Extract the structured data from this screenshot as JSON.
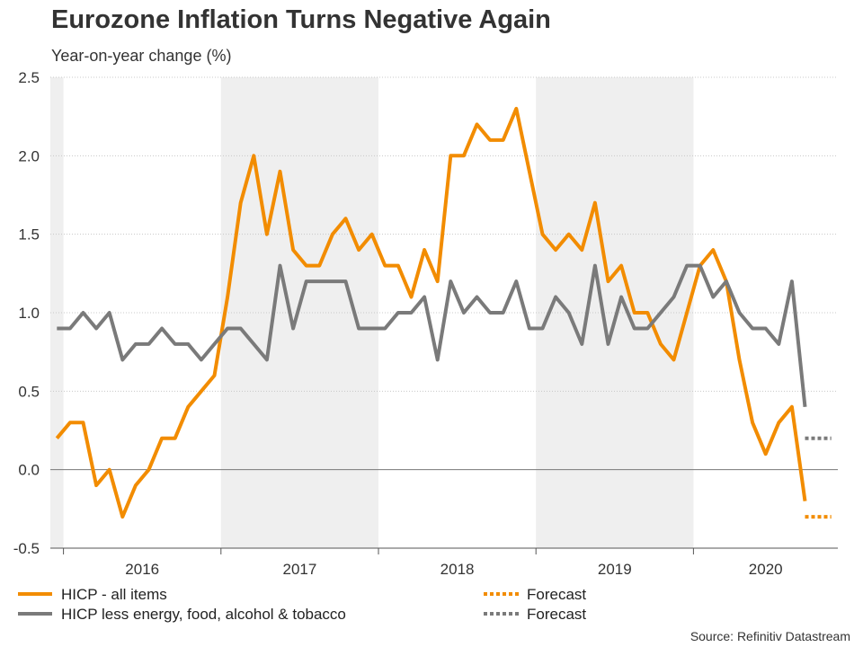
{
  "title": "Eurozone Inflation Turns Negative Again",
  "subtitle": "Year-on-year change (%)",
  "source": "Source: Refinitiv Datastream",
  "legend": [
    {
      "label": "HICP - all items",
      "color": "#f28c00",
      "style": "solid"
    },
    {
      "label": "Forecast",
      "color": "#f28c00",
      "style": "dotted"
    },
    {
      "label": "HICP less energy, food, alcohol & tobacco",
      "color": "#7a7a7a",
      "style": "solid"
    },
    {
      "label": "Forecast",
      "color": "#7a7a7a",
      "style": "dotted"
    }
  ],
  "chart_data": {
    "type": "line",
    "title": "Eurozone Inflation Turns Negative Again",
    "ylabel": "Year-on-year change (%)",
    "ylim": [
      -0.5,
      2.5
    ],
    "yticks": [
      "-0.5",
      "0.0",
      "0.5",
      "1.0",
      "1.5",
      "2.0",
      "2.5"
    ],
    "x_start": "2015-12",
    "x_end": "2020-11",
    "year_labels": [
      "2016",
      "2017",
      "2018",
      "2019",
      "2020"
    ],
    "shaded_years": [
      "2015",
      "2017",
      "2019"
    ],
    "grid": "horizontal dotted",
    "series": [
      {
        "name": "HICP - all items",
        "color": "#f28c00",
        "x": [
          "2015-12",
          "2016-01",
          "2016-02",
          "2016-03",
          "2016-04",
          "2016-05",
          "2016-06",
          "2016-07",
          "2016-08",
          "2016-09",
          "2016-10",
          "2016-11",
          "2016-12",
          "2017-01",
          "2017-02",
          "2017-03",
          "2017-04",
          "2017-05",
          "2017-06",
          "2017-07",
          "2017-08",
          "2017-09",
          "2017-10",
          "2017-11",
          "2017-12",
          "2018-01",
          "2018-02",
          "2018-03",
          "2018-04",
          "2018-05",
          "2018-06",
          "2018-07",
          "2018-08",
          "2018-09",
          "2018-10",
          "2018-11",
          "2018-12",
          "2019-01",
          "2019-02",
          "2019-03",
          "2019-04",
          "2019-05",
          "2019-06",
          "2019-07",
          "2019-08",
          "2019-09",
          "2019-10",
          "2019-11",
          "2019-12",
          "2020-01",
          "2020-02",
          "2020-03",
          "2020-04",
          "2020-05",
          "2020-06",
          "2020-07",
          "2020-08",
          "2020-09"
        ],
        "values": [
          0.2,
          0.3,
          0.3,
          -0.1,
          0.0,
          -0.3,
          -0.1,
          0.0,
          0.2,
          0.2,
          0.4,
          0.5,
          0.6,
          1.1,
          1.7,
          2.0,
          1.5,
          1.9,
          1.4,
          1.3,
          1.3,
          1.5,
          1.6,
          1.4,
          1.5,
          1.3,
          1.3,
          1.1,
          1.4,
          1.2,
          2.0,
          2.0,
          2.2,
          2.1,
          2.1,
          2.3,
          1.9,
          1.5,
          1.4,
          1.5,
          1.4,
          1.7,
          1.2,
          1.3,
          1.0,
          1.0,
          0.8,
          0.7,
          1.0,
          1.3,
          1.4,
          1.2,
          0.7,
          0.3,
          0.1,
          0.3,
          0.4,
          -0.2
        ]
      },
      {
        "name": "HICP - all items Forecast",
        "color": "#f28c00",
        "style": "dotted",
        "x": [
          "2020-09",
          "2020-10",
          "2020-11"
        ],
        "values": [
          -0.3,
          -0.3,
          -0.3
        ]
      },
      {
        "name": "HICP less energy, food, alcohol & tobacco",
        "color": "#7a7a7a",
        "x": [
          "2015-12",
          "2016-01",
          "2016-02",
          "2016-03",
          "2016-04",
          "2016-05",
          "2016-06",
          "2016-07",
          "2016-08",
          "2016-09",
          "2016-10",
          "2016-11",
          "2016-12",
          "2017-01",
          "2017-02",
          "2017-03",
          "2017-04",
          "2017-05",
          "2017-06",
          "2017-07",
          "2017-08",
          "2017-09",
          "2017-10",
          "2017-11",
          "2017-12",
          "2018-01",
          "2018-02",
          "2018-03",
          "2018-04",
          "2018-05",
          "2018-06",
          "2018-07",
          "2018-08",
          "2018-09",
          "2018-10",
          "2018-11",
          "2018-12",
          "2019-01",
          "2019-02",
          "2019-03",
          "2019-04",
          "2019-05",
          "2019-06",
          "2019-07",
          "2019-08",
          "2019-09",
          "2019-10",
          "2019-11",
          "2019-12",
          "2020-01",
          "2020-02",
          "2020-03",
          "2020-04",
          "2020-05",
          "2020-06",
          "2020-07",
          "2020-08",
          "2020-09"
        ],
        "values": [
          0.9,
          0.9,
          1.0,
          0.9,
          1.0,
          0.7,
          0.8,
          0.8,
          0.9,
          0.8,
          0.8,
          0.7,
          0.8,
          0.9,
          0.9,
          0.8,
          0.7,
          1.3,
          0.9,
          1.2,
          1.2,
          1.2,
          1.2,
          0.9,
          0.9,
          0.9,
          1.0,
          1.0,
          1.1,
          0.7,
          1.2,
          1.0,
          1.1,
          1.0,
          1.0,
          1.2,
          0.9,
          0.9,
          1.1,
          1.0,
          0.8,
          1.3,
          0.8,
          1.1,
          0.9,
          0.9,
          1.0,
          1.1,
          1.3,
          1.3,
          1.1,
          1.2,
          1.0,
          0.9,
          0.9,
          0.8,
          1.2,
          0.4
        ]
      },
      {
        "name": "HICP less energy, food, alcohol & tobacco Forecast",
        "color": "#7a7a7a",
        "style": "dotted",
        "x": [
          "2020-09",
          "2020-10",
          "2020-11"
        ],
        "values": [
          0.2,
          0.2,
          0.2
        ]
      }
    ]
  }
}
